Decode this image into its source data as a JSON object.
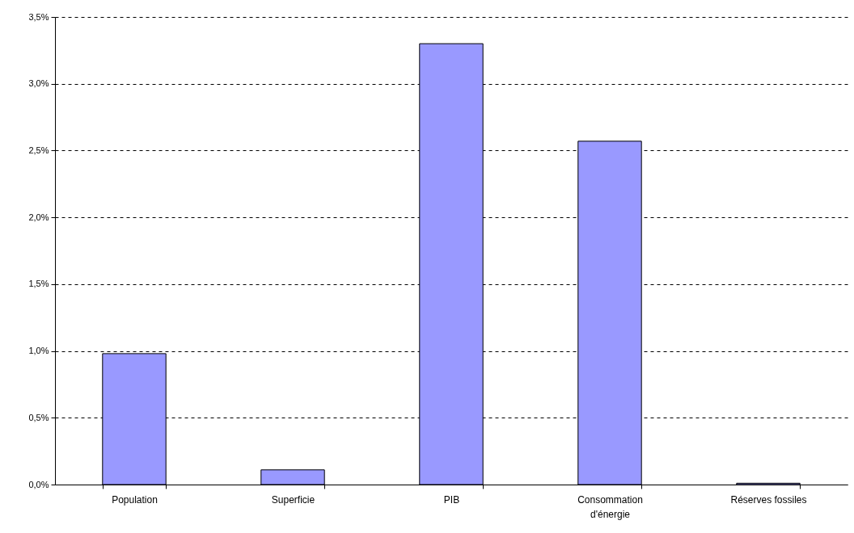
{
  "chart_data": {
    "type": "bar",
    "categories": [
      "Population",
      "Superficie",
      "PIB",
      "Consommation d'énergie",
      "Réserves fossiles"
    ],
    "values": [
      0.98,
      0.11,
      3.3,
      2.57,
      0.01
    ],
    "color": "#9999ff",
    "ylim": [
      0,
      3.5
    ],
    "yticks": [
      {
        "value": 0,
        "label": "0,0%"
      },
      {
        "value": 0.5,
        "label": "0,5%"
      },
      {
        "value": 1,
        "label": "1,0%"
      },
      {
        "value": 1.5,
        "label": "1,5%"
      },
      {
        "value": 2,
        "label": "2,0%"
      },
      {
        "value": 2.5,
        "label": "2,5%"
      },
      {
        "value": 3,
        "label": "3,0%"
      },
      {
        "value": 3.5,
        "label": "3,5%"
      }
    ],
    "grid": "y"
  }
}
